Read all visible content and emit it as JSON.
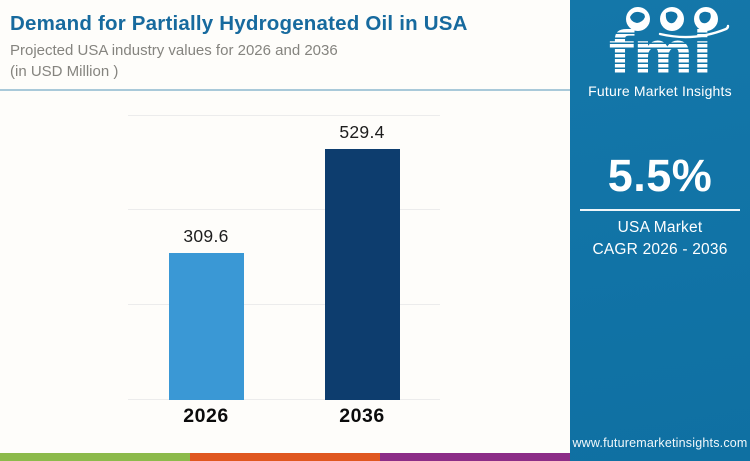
{
  "header": {
    "title": "Demand for Partially Hydrogenated Oil in USA",
    "subtitle_line1": "Projected USA industry values for 2026 and 2036",
    "subtitle_line2": "(in USD Million )"
  },
  "chart_data": {
    "type": "bar",
    "title": "Demand for Partially Hydrogenated Oil in USA",
    "subtitle": "Projected USA industry values for 2026 and 2036 (in USD Million )",
    "categories": [
      "2026",
      "2036"
    ],
    "values": [
      309.6,
      529.4
    ],
    "value_labels": [
      "309.6",
      "529.4"
    ],
    "series_colors": [
      "#3a98d5",
      "#0d3d6e"
    ],
    "xlabel": "",
    "ylabel": "",
    "unit": "USD Million",
    "ylim": [
      0,
      600
    ],
    "gridline_step": 200,
    "grid": true,
    "legend": false
  },
  "sidebar": {
    "logo": {
      "text": "fmi",
      "tagline": "Future Market Insights",
      "icons": [
        "globe-americas-icon",
        "globe-europe-icon",
        "globe-asia-icon",
        "swoosh-arc"
      ]
    },
    "stat": {
      "value": "5.5%",
      "label_line1": "USA Market",
      "label_line2": "CAGR 2026 - 2036"
    },
    "website": "www.futuremarketinsights.com",
    "background_color": "#1173a6"
  },
  "footer": {
    "stripe_colors": [
      "#8cba4a",
      "#e0571f",
      "#8c2d87"
    ]
  },
  "colors": {
    "title_text": "#176a9e",
    "subtitle_text": "#85847f",
    "header_divider": "#a9c9d9",
    "gridline": "#ececec"
  }
}
